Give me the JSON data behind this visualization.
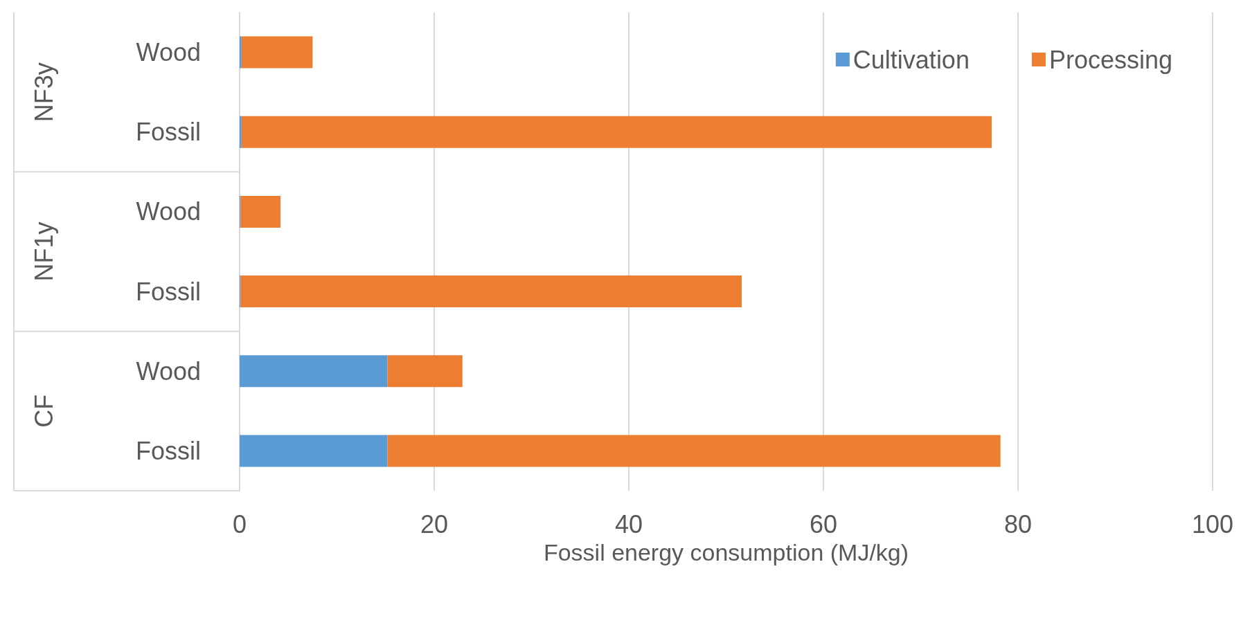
{
  "chart_data": {
    "type": "bar",
    "orientation": "horizontal",
    "stacked": true,
    "xlabel": "Fossil energy consumption (MJ/kg)",
    "categories": [
      "Wood",
      "Fossil",
      "Wood",
      "Fossil",
      "Wood",
      "Fossil"
    ],
    "annotations": [
      "NF3y",
      "NF1y",
      "CF"
    ],
    "series": [
      {
        "name": "Cultivation",
        "color": "#5b9bd5",
        "values": [
          0.2,
          0.2,
          0.1,
          0.1,
          15.2,
          15.2
        ]
      },
      {
        "name": "Processing",
        "color": "#ed7d31",
        "values": [
          7.3,
          77.1,
          4.1,
          51.5,
          7.7,
          63.0
        ]
      }
    ],
    "xlim": [
      0,
      100
    ],
    "xticks": [
      0,
      20,
      40,
      60,
      80,
      100
    ],
    "grid": "x",
    "legend": "top right"
  }
}
